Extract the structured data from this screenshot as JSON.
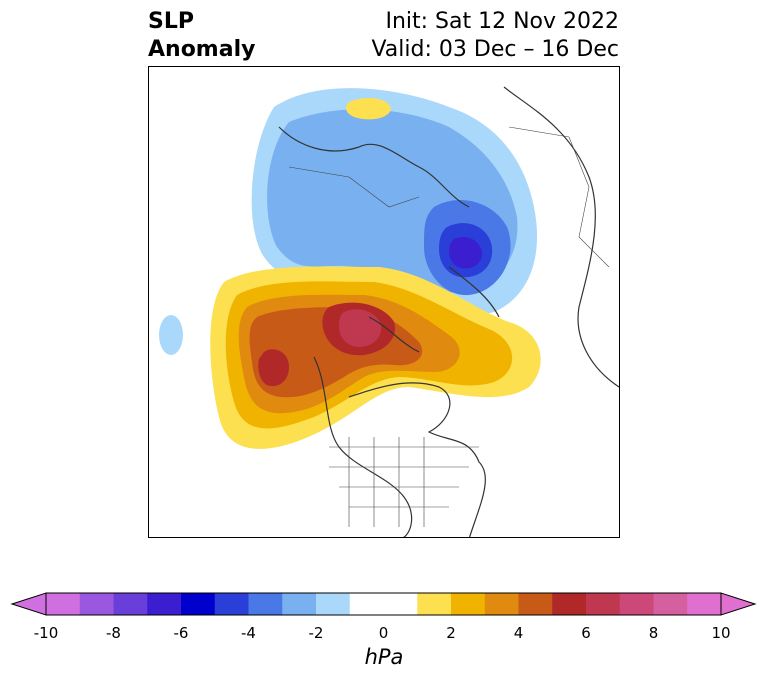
{
  "title": {
    "left_line1": "SLP",
    "left_line2": "Anomaly",
    "right_line1": "Init: Sat 12 Nov 2022",
    "right_line2": "Valid: 03 Dec – 16 Dec"
  },
  "colorbar": {
    "unit": "hPa",
    "ticks": [
      "-10",
      "-8",
      "-6",
      "-4",
      "-2",
      "0",
      "2",
      "4",
      "6",
      "8",
      "10"
    ],
    "colors": [
      "#d070e0",
      "#9a58e0",
      "#6a3ed8",
      "#3a1ed0",
      "#0000cc",
      "#2a3ed8",
      "#4a78e6",
      "#78b0f0",
      "#aad8fa",
      "#ffffff",
      "#ffffff",
      "#fde050",
      "#f0b400",
      "#e08a10",
      "#c85a18",
      "#b02828",
      "#c03850",
      "#cc4878",
      "#d460a0",
      "#e070d0"
    ],
    "extend": "both"
  },
  "map": {
    "projection": "north polar stereographic",
    "variable": "sea level pressure anomaly"
  }
}
